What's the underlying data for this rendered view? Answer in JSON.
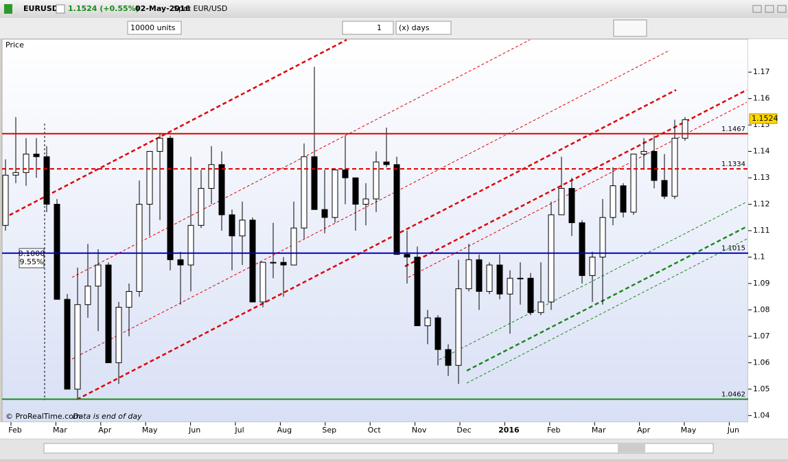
{
  "header": {
    "symbol": "EURUSD",
    "quote": "1.1524 (+0.55%)",
    "date": "02-May-2016",
    "description": "Spot EUR/USD"
  },
  "toolbar": {
    "units": "10000 units",
    "period_count": "1",
    "period_unit": "(x) days"
  },
  "panel": {
    "label": "Price"
  },
  "footer": {
    "copyright": "© ProRealTime.com",
    "note": "Data is end of day"
  },
  "annotation": {
    "ratio": "0.1000",
    "percent": "9.55%"
  },
  "chart_data": {
    "type": "candlestick",
    "open": [
      1.112,
      1.131,
      1.132,
      1.139,
      1.138,
      1.12,
      1.084,
      1.05,
      1.082,
      1.089,
      1.097,
      1.06,
      1.081,
      1.087,
      1.12,
      1.14,
      1.145,
      1.099,
      1.097,
      1.112,
      1.126,
      1.135,
      1.116,
      1.108,
      1.114,
      1.083,
      1.098,
      1.098,
      1.097,
      1.111,
      1.138,
      1.118,
      1.115,
      1.133,
      1.13,
      1.12,
      1.122,
      1.136,
      1.135,
      1.101,
      1.1,
      1.074,
      1.077,
      1.065,
      1.059,
      1.088,
      1.099,
      1.087,
      1.097,
      1.086,
      1.092,
      1.092,
      1.079,
      1.083,
      1.116,
      1.126,
      1.113,
      1.093,
      1.1,
      1.115,
      1.127,
      1.117,
      1.139,
      1.14,
      1.129,
      1.123,
      1.145
    ],
    "high": [
      1.137,
      1.153,
      1.145,
      1.145,
      1.142,
      1.122,
      1.086,
      1.096,
      1.105,
      1.103,
      1.098,
      1.083,
      1.09,
      1.129,
      1.14,
      1.147,
      1.146,
      1.102,
      1.138,
      1.133,
      1.142,
      1.14,
      1.118,
      1.121,
      1.115,
      1.098,
      1.113,
      1.1,
      1.121,
      1.143,
      1.172,
      1.133,
      1.133,
      1.146,
      1.13,
      1.128,
      1.14,
      1.149,
      1.138,
      1.11,
      1.104,
      1.08,
      1.078,
      1.067,
      1.099,
      1.105,
      1.101,
      1.098,
      1.101,
      1.095,
      1.098,
      1.094,
      1.098,
      1.121,
      1.138,
      1.13,
      1.114,
      1.102,
      1.122,
      1.134,
      1.128,
      1.139,
      1.145,
      1.146,
      1.139,
      1.152,
      1.153
    ],
    "low": [
      1.11,
      1.128,
      1.127,
      1.13,
      1.117,
      1.084,
      1.05,
      1.046,
      1.077,
      1.072,
      1.06,
      1.052,
      1.07,
      1.085,
      1.108,
      1.114,
      1.095,
      1.082,
      1.087,
      1.111,
      1.12,
      1.11,
      1.095,
      1.097,
      1.083,
      1.081,
      1.092,
      1.085,
      1.097,
      1.107,
      1.119,
      1.109,
      1.113,
      1.12,
      1.11,
      1.112,
      1.117,
      1.134,
      1.101,
      1.09,
      1.074,
      1.067,
      1.059,
      1.055,
      1.052,
      1.087,
      1.08,
      1.086,
      1.084,
      1.071,
      1.082,
      1.078,
      1.078,
      1.08,
      1.116,
      1.108,
      1.09,
      1.083,
      1.082,
      1.112,
      1.115,
      1.116,
      1.133,
      1.126,
      1.122,
      1.122,
      1.144
    ],
    "close": [
      1.131,
      1.132,
      1.139,
      1.138,
      1.12,
      1.084,
      1.05,
      1.082,
      1.089,
      1.097,
      1.06,
      1.081,
      1.087,
      1.12,
      1.14,
      1.145,
      1.099,
      1.097,
      1.112,
      1.126,
      1.135,
      1.116,
      1.108,
      1.114,
      1.083,
      1.098,
      1.098,
      1.097,
      1.111,
      1.138,
      1.118,
      1.115,
      1.133,
      1.13,
      1.12,
      1.122,
      1.136,
      1.135,
      1.101,
      1.1,
      1.074,
      1.077,
      1.065,
      1.059,
      1.088,
      1.099,
      1.087,
      1.097,
      1.086,
      1.092,
      1.092,
      1.079,
      1.083,
      1.116,
      1.126,
      1.113,
      1.093,
      1.1,
      1.115,
      1.127,
      1.117,
      1.139,
      1.14,
      1.129,
      1.123,
      1.145,
      1.152
    ],
    "xtick_labels": [
      "Feb",
      "Mar",
      "Apr",
      "May",
      "Jun",
      "Jul",
      "Aug",
      "Sep",
      "Oct",
      "Nov",
      "Dec",
      "2016",
      "Feb",
      "Mar",
      "Apr",
      "May",
      "Jun"
    ],
    "ylim": [
      1.0375,
      1.1825
    ],
    "yticks": [
      1.04,
      1.05,
      1.06,
      1.07,
      1.08,
      1.09,
      1.1,
      1.11,
      1.12,
      1.13,
      1.14,
      1.15,
      1.16,
      1.17
    ],
    "levels": [
      {
        "value": 1.1467,
        "color": "#e00000",
        "dashed": false
      },
      {
        "value": 1.1334,
        "color": "#e00000",
        "dashed": true
      },
      {
        "value": 1.1015,
        "color": "#0000c8",
        "dashed": false
      },
      {
        "value": 1.0462,
        "color": "#1a8a1a",
        "dashed": false
      }
    ],
    "last": 1.1524,
    "candle_color": "#000000"
  }
}
